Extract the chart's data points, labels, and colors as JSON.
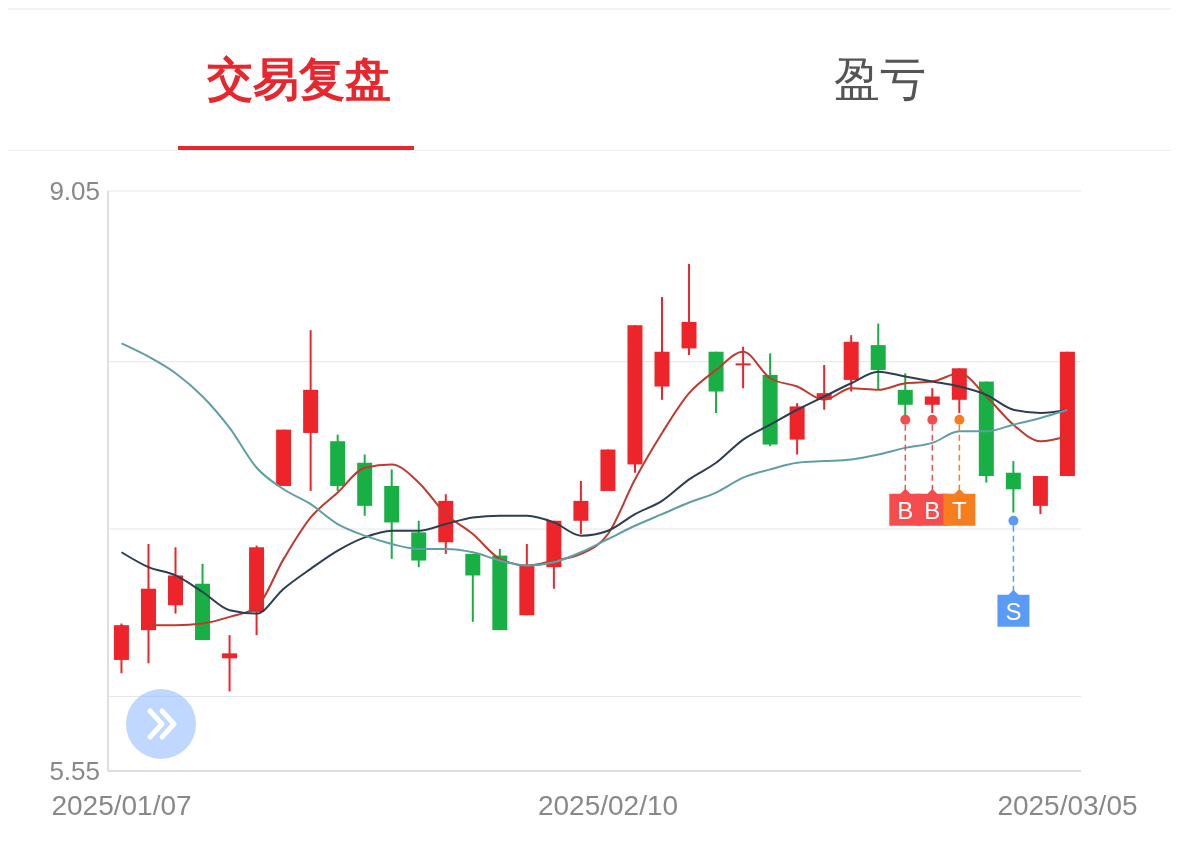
{
  "chart_data": {
    "type": "candlestick",
    "title": "交易复盘",
    "subtitle": "盈亏",
    "categories": [
      "2025/01/07",
      null,
      null,
      null,
      null,
      null,
      null,
      null,
      null,
      null,
      null,
      null,
      null,
      null,
      null,
      null,
      null,
      null,
      "2025/02/10",
      null,
      null,
      null,
      null,
      null,
      null,
      null,
      null,
      null,
      null,
      null,
      null,
      null,
      null,
      null,
      null,
      "2025/03/05"
    ],
    "ohlc": [
      [
        6.22,
        6.44,
        6.14,
        6.43
      ],
      [
        6.4,
        6.92,
        6.2,
        6.65
      ],
      [
        6.55,
        6.9,
        6.5,
        6.73
      ],
      [
        6.68,
        6.8,
        6.34,
        6.34
      ],
      [
        6.23,
        6.37,
        6.03,
        6.26
      ],
      [
        6.51,
        6.91,
        6.37,
        6.9
      ],
      [
        7.27,
        7.61,
        7.27,
        7.61
      ],
      [
        7.59,
        8.21,
        7.24,
        7.85
      ],
      [
        7.54,
        7.58,
        7.24,
        7.27
      ],
      [
        7.41,
        7.46,
        7.09,
        7.15
      ],
      [
        7.27,
        7.37,
        6.83,
        7.05
      ],
      [
        6.99,
        7.06,
        6.78,
        6.82
      ],
      [
        6.93,
        7.22,
        6.86,
        7.18
      ],
      [
        6.86,
        6.86,
        6.45,
        6.73
      ],
      [
        6.85,
        6.89,
        6.4,
        6.4
      ],
      [
        6.49,
        6.92,
        6.49,
        6.79
      ],
      [
        6.78,
        7.06,
        6.65,
        7.06
      ],
      [
        7.06,
        7.3,
        6.98,
        7.18
      ],
      [
        7.24,
        7.49,
        7.24,
        7.49
      ],
      [
        7.4,
        8.24,
        7.35,
        8.24
      ],
      [
        7.87,
        8.41,
        7.79,
        8.08
      ],
      [
        8.1,
        8.61,
        8.06,
        8.26
      ],
      [
        8.08,
        8.08,
        7.71,
        7.84
      ],
      [
        8.0,
        8.11,
        7.86,
        8.01
      ],
      [
        7.94,
        8.07,
        7.51,
        7.52
      ],
      [
        7.55,
        7.77,
        7.46,
        7.75
      ],
      [
        7.79,
        8.0,
        7.73,
        7.83
      ],
      [
        7.91,
        8.18,
        7.84,
        8.14
      ],
      [
        8.12,
        8.25,
        7.85,
        7.97
      ],
      [
        7.85,
        7.95,
        7.69,
        7.76
      ],
      [
        7.76,
        7.86,
        7.71,
        7.81
      ],
      [
        7.79,
        7.98,
        7.71,
        7.98
      ],
      [
        7.9,
        7.9,
        7.29,
        7.33
      ],
      [
        7.35,
        7.42,
        7.11,
        7.25
      ],
      [
        7.15,
        7.33,
        7.1,
        7.33
      ],
      [
        7.33,
        8.08,
        7.33,
        8.08
      ]
    ],
    "colors": [
      "#ee242b",
      "#ee242b",
      "#ee242b",
      "#18b045",
      "#ee242b",
      "#ee242b",
      "#ee242b",
      "#ee242b",
      "#18b045",
      "#18b045",
      "#18b045",
      "#18b045",
      "#ee242b",
      "#18b045",
      "#18b045",
      "#ee242b",
      "#ee242b",
      "#ee242b",
      "#ee242b",
      "#ee242b",
      "#ee242b",
      "#ee242b",
      "#18b045",
      "#ee242b",
      "#18b045",
      "#ee242b",
      "#ee242b",
      "#ee242b",
      "#18b045",
      "#18b045",
      "#ee242b",
      "#ee242b",
      "#18b045",
      "#18b045",
      "#ee242b",
      "#ee242b"
    ],
    "series": [
      {
        "type": "line",
        "color": "#c0392f",
        "values": [
          null,
          6.43,
          6.43,
          6.44,
          6.48,
          6.54,
          6.83,
          7.08,
          7.23,
          7.38,
          7.4,
          7.29,
          7.1,
          6.98,
          6.83,
          6.79,
          6.82,
          6.86,
          6.98,
          7.31,
          7.59,
          7.83,
          7.97,
          8.08,
          7.92,
          7.87,
          7.79,
          7.86,
          7.85,
          7.89,
          7.9,
          7.95,
          7.81,
          7.64,
          7.54,
          7.57
        ]
      },
      {
        "type": "line",
        "color": "#2c3e50",
        "values": [
          6.87,
          6.78,
          6.73,
          6.63,
          6.52,
          6.5,
          6.65,
          6.77,
          6.88,
          6.96,
          7.0,
          7.0,
          7.04,
          7.08,
          7.09,
          7.09,
          7.05,
          6.97,
          7.0,
          7.1,
          7.18,
          7.31,
          7.41,
          7.55,
          7.64,
          7.73,
          7.81,
          7.89,
          7.96,
          7.93,
          7.9,
          7.87,
          7.82,
          7.73,
          7.71,
          7.73
        ]
      },
      {
        "type": "line",
        "color": "#5f9ea3",
        "values": [
          8.13,
          8.05,
          7.95,
          7.81,
          7.62,
          7.38,
          7.25,
          7.16,
          7.04,
          6.97,
          6.92,
          6.89,
          6.89,
          6.87,
          6.82,
          6.79,
          6.81,
          6.87,
          6.95,
          7.03,
          7.1,
          7.17,
          7.23,
          7.32,
          7.37,
          7.41,
          7.42,
          7.43,
          7.46,
          7.5,
          7.53,
          7.6,
          7.6,
          7.64,
          7.68,
          7.73
        ]
      },
      {
        "type": "scatter",
        "color": "#f54d4d",
        "values": [
          null,
          null,
          null,
          null,
          null,
          null,
          null,
          null,
          null,
          null,
          null,
          null,
          null,
          null,
          null,
          null,
          null,
          null,
          null,
          null,
          null,
          null,
          null,
          null,
          null,
          null,
          null,
          null,
          null,
          7.67,
          7.67,
          null,
          null,
          null,
          null,
          null
        ]
      },
      {
        "type": "scatter",
        "color": "#f57f1e",
        "values": [
          null,
          null,
          null,
          null,
          null,
          null,
          null,
          null,
          null,
          null,
          null,
          null,
          null,
          null,
          null,
          null,
          null,
          null,
          null,
          null,
          null,
          null,
          null,
          null,
          null,
          null,
          null,
          null,
          null,
          null,
          null,
          7.67,
          null,
          null,
          null,
          null
        ]
      },
      {
        "type": "scatter",
        "color": "#5b9bf8",
        "values": [
          null,
          null,
          null,
          null,
          null,
          null,
          null,
          null,
          null,
          null,
          null,
          null,
          null,
          null,
          null,
          null,
          null,
          null,
          null,
          null,
          null,
          null,
          null,
          null,
          null,
          null,
          null,
          null,
          null,
          null,
          null,
          null,
          null,
          7.06,
          null,
          null
        ]
      }
    ],
    "annotations": [
      {
        "text": "B",
        "y": 7.67
      },
      {
        "text": "B",
        "y": 7.67
      },
      {
        "text": "T",
        "y": 7.67
      },
      {
        "text": "S",
        "y": 7.06
      }
    ],
    "ylim": [
      5.55,
      9.05
    ],
    "yticks": [
      9.05,
      {
        "value": 8.02,
        "label": null
      },
      {
        "value": 7.01,
        "label": null
      },
      {
        "value": 6.0,
        "label": null
      },
      5.55
    ],
    "grid": "y"
  }
}
